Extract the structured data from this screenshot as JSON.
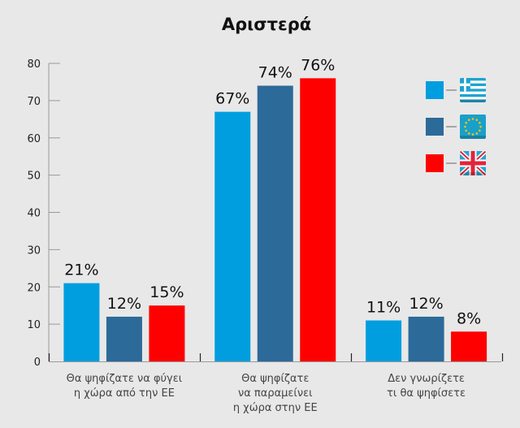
{
  "chart_data": {
    "type": "bar",
    "title": "Αριστερά",
    "xlabel": "",
    "ylabel": "",
    "ylim": [
      0,
      80
    ],
    "yticks": [
      0,
      10,
      20,
      30,
      40,
      50,
      60,
      70,
      80
    ],
    "grid": false,
    "legend_placement": "top-right",
    "categories": [
      [
        "Θα ψηφίζατε να φύγει",
        "η χώρα από την ΕΕ"
      ],
      [
        "Θα ψηφίζατε",
        "να παραμείνει",
        "η χώρα στην ΕΕ"
      ],
      [
        "Δεν γνωρίζετε",
        "τι θα ψηφίσετε"
      ]
    ],
    "series": [
      {
        "name": "greece-flag",
        "icon": "greece-flag-icon",
        "color": "#009edf",
        "values": [
          21,
          67,
          11
        ],
        "labels": [
          "21%",
          "67%",
          "11%"
        ]
      },
      {
        "name": "eu-flag",
        "icon": "eu-flag-icon",
        "color": "#2c6a9a",
        "values": [
          12,
          74,
          12
        ],
        "labels": [
          "12%",
          "74%",
          "12%"
        ]
      },
      {
        "name": "uk-flag",
        "icon": "uk-flag-icon",
        "color": "#ff0000",
        "values": [
          15,
          76,
          8
        ],
        "labels": [
          "15%",
          "76%",
          "8%"
        ]
      }
    ]
  }
}
